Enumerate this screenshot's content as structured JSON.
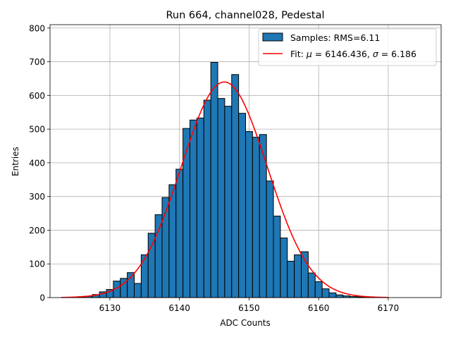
{
  "chart_data": {
    "type": "bar",
    "title": "Run 664, channel028, Pedestal",
    "xlabel": "ADC Counts",
    "ylabel": "Entries",
    "xlim": [
      6121.4,
      6177.6
    ],
    "ylim": [
      0,
      810
    ],
    "xticks": [
      6130,
      6140,
      6150,
      6160,
      6170
    ],
    "yticks": [
      0,
      100,
      200,
      300,
      400,
      500,
      600,
      700,
      800
    ],
    "grid": true,
    "legend_position": "top-right",
    "bin_width": 1,
    "bins": [
      {
        "x": 6125,
        "count": 1
      },
      {
        "x": 6126,
        "count": 1
      },
      {
        "x": 6127,
        "count": 4
      },
      {
        "x": 6128,
        "count": 9
      },
      {
        "x": 6129,
        "count": 17
      },
      {
        "x": 6130,
        "count": 24
      },
      {
        "x": 6131,
        "count": 49
      },
      {
        "x": 6132,
        "count": 57
      },
      {
        "x": 6133,
        "count": 74
      },
      {
        "x": 6134,
        "count": 42
      },
      {
        "x": 6135,
        "count": 127
      },
      {
        "x": 6136,
        "count": 191
      },
      {
        "x": 6137,
        "count": 246
      },
      {
        "x": 6138,
        "count": 297
      },
      {
        "x": 6139,
        "count": 335
      },
      {
        "x": 6140,
        "count": 381
      },
      {
        "x": 6141,
        "count": 502
      },
      {
        "x": 6142,
        "count": 527
      },
      {
        "x": 6143,
        "count": 533
      },
      {
        "x": 6144,
        "count": 586
      },
      {
        "x": 6145,
        "count": 698
      },
      {
        "x": 6146,
        "count": 591
      },
      {
        "x": 6147,
        "count": 568
      },
      {
        "x": 6148,
        "count": 662
      },
      {
        "x": 6149,
        "count": 547
      },
      {
        "x": 6150,
        "count": 493
      },
      {
        "x": 6151,
        "count": 476
      },
      {
        "x": 6152,
        "count": 484
      },
      {
        "x": 6153,
        "count": 346
      },
      {
        "x": 6154,
        "count": 242
      },
      {
        "x": 6155,
        "count": 177
      },
      {
        "x": 6156,
        "count": 108
      },
      {
        "x": 6157,
        "count": 127
      },
      {
        "x": 6158,
        "count": 136
      },
      {
        "x": 6159,
        "count": 73
      },
      {
        "x": 6160,
        "count": 47
      },
      {
        "x": 6161,
        "count": 26
      },
      {
        "x": 6162,
        "count": 14
      },
      {
        "x": 6163,
        "count": 8
      },
      {
        "x": 6164,
        "count": 5
      },
      {
        "x": 6165,
        "count": 3
      },
      {
        "x": 6166,
        "count": 2
      },
      {
        "x": 6167,
        "count": 1
      },
      {
        "x": 6168,
        "count": 1
      }
    ],
    "series": [
      {
        "name": "Samples: RMS=6.11",
        "kind": "histogram",
        "color": "#1f77b4"
      },
      {
        "name": "Fit: μ = 6146.436, σ = 6.186",
        "kind": "gaussian_fit",
        "color": "#ff0000",
        "mu": 6146.436,
        "sigma": 6.186,
        "amplitude": 640,
        "x_range": [
          6123,
          6170
        ]
      }
    ],
    "legend": {
      "hist_prefix": "Samples: RMS=6.11",
      "fit_prefix": "Fit: ",
      "mu_symbol": "μ",
      "mu_text": " = 6146.436, ",
      "sigma_symbol": "σ",
      "sigma_text": " = 6.186"
    }
  }
}
